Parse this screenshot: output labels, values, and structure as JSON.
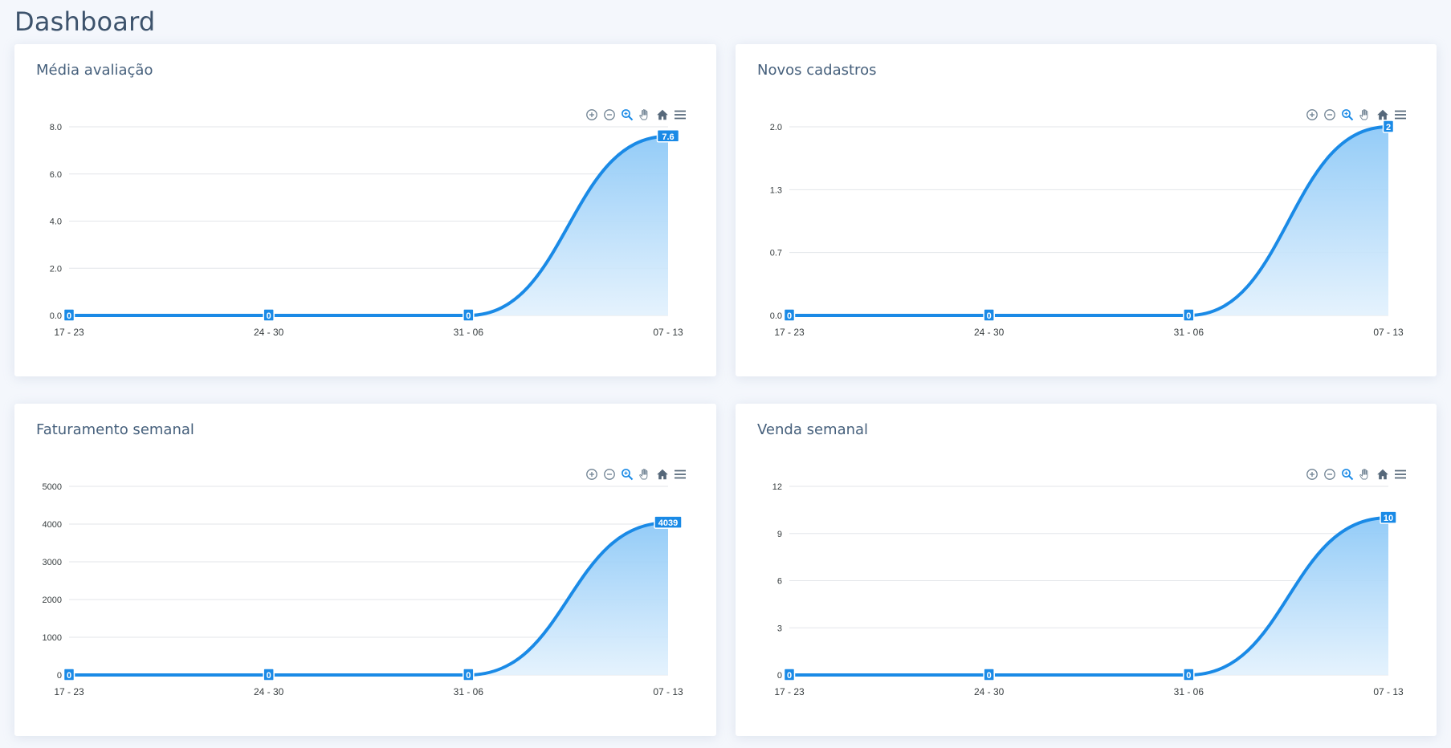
{
  "page": {
    "title": "Dashboard"
  },
  "colors": {
    "line": "#1a8ae6",
    "fill_top": "#8ec9f7",
    "fill_bottom": "#e2f1fd",
    "grid": "#e3e6ea",
    "label_bg": "#1a8ae6"
  },
  "toolbar_icons": [
    "zoom-in-icon",
    "zoom-out-icon",
    "selection-zoom-icon",
    "pan-hand-icon",
    "home-reset-icon",
    "menu-icon"
  ],
  "cards": [
    {
      "title": "Média avaliação",
      "chart_data": {
        "type": "area",
        "categories": [
          "17 - 23",
          "24 - 30",
          "31 - 06",
          "07 - 13"
        ],
        "values": [
          0,
          0,
          0,
          7.6
        ],
        "data_labels": [
          "0",
          "0",
          "0",
          "7.6"
        ],
        "y_ticks": [
          "0.0",
          "2.0",
          "4.0",
          "6.0",
          "8.0"
        ],
        "ylim": [
          0,
          8
        ]
      }
    },
    {
      "title": "Novos cadastros",
      "chart_data": {
        "type": "area",
        "categories": [
          "17 - 23",
          "24 - 30",
          "31 - 06",
          "07 - 13"
        ],
        "values": [
          0,
          0,
          0,
          2
        ],
        "data_labels": [
          "0",
          "0",
          "0",
          "2"
        ],
        "y_ticks": [
          "0.0",
          "0.7",
          "1.3",
          "2.0"
        ],
        "ylim": [
          0,
          2
        ]
      }
    },
    {
      "title": "Faturamento semanal",
      "chart_data": {
        "type": "area",
        "categories": [
          "17 - 23",
          "24 - 30",
          "31 - 06",
          "07 - 13"
        ],
        "values": [
          0,
          0,
          0,
          4039
        ],
        "data_labels": [
          "0",
          "0",
          "0",
          "4039"
        ],
        "y_ticks": [
          "0",
          "1000",
          "2000",
          "3000",
          "4000",
          "5000"
        ],
        "ylim": [
          0,
          5000
        ]
      }
    },
    {
      "title": "Venda semanal",
      "chart_data": {
        "type": "area",
        "categories": [
          "17 - 23",
          "24 - 30",
          "31 - 06",
          "07 - 13"
        ],
        "values": [
          0,
          0,
          0,
          10
        ],
        "data_labels": [
          "0",
          "0",
          "0",
          "10"
        ],
        "y_ticks": [
          "0",
          "3",
          "6",
          "9",
          "12"
        ],
        "ylim": [
          0,
          12
        ]
      }
    }
  ]
}
